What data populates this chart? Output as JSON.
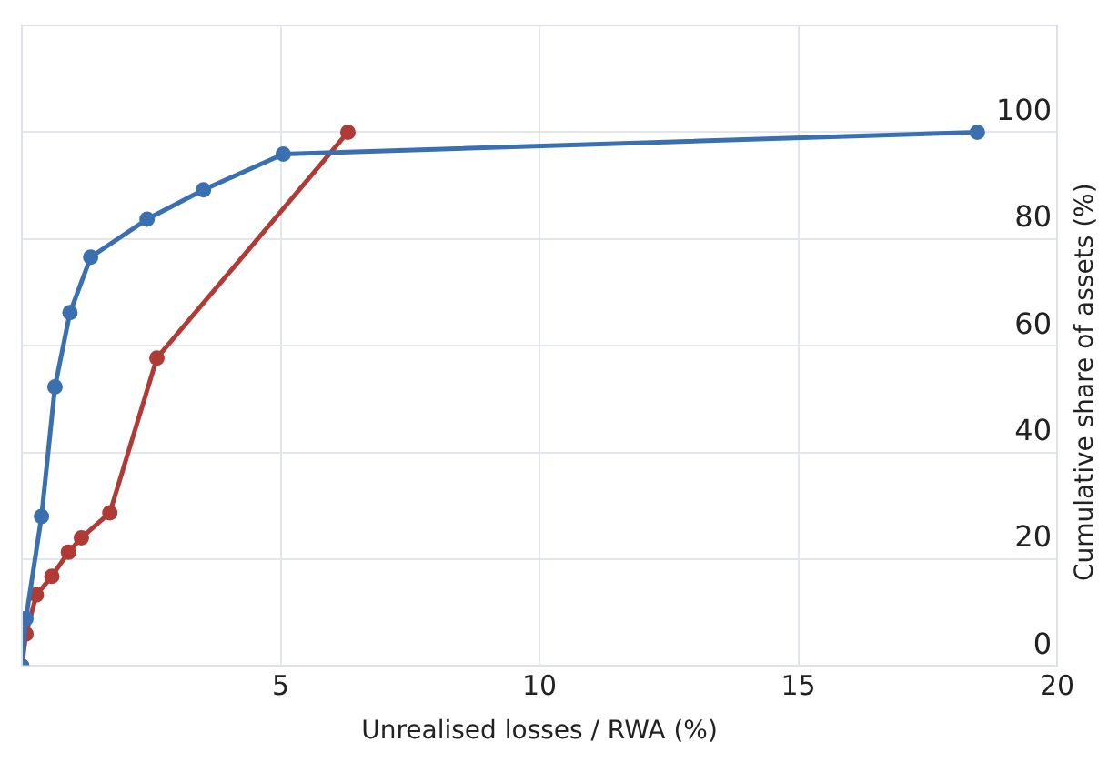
{
  "chart_data": {
    "type": "line",
    "xlabel": "Unrealised losses / RWA (%)",
    "ylabel": "Cumulative share of assets (%)",
    "xlim": [
      0,
      20
    ],
    "xticks": [
      {
        "value": 0,
        "label": null
      },
      5,
      10,
      15,
      20
    ],
    "ylim": [
      0,
      120
    ],
    "yticks": [
      0,
      20,
      40,
      60,
      80,
      100
    ],
    "grid": true,
    "legend": false,
    "marker": "circle",
    "line_style": "solid",
    "series": [
      {
        "color": "#3a6fb0",
        "x": [
          0,
          0.08,
          0.38,
          0.64,
          0.93,
          1.33,
          2.42,
          3.51,
          5.05,
          18.46
        ],
        "values": [
          0,
          8.9,
          28,
          52.3,
          66.2,
          76.6,
          83.7,
          89.2,
          95.9,
          100
        ]
      },
      {
        "color": "#b03a36",
        "x": [
          0,
          0.08,
          0.28,
          0.58,
          0.9,
          1.15,
          1.7,
          2.61,
          6.3
        ],
        "values": [
          0,
          6,
          13.3,
          16.8,
          21.3,
          24,
          28.7,
          57.7,
          100
        ]
      }
    ]
  }
}
